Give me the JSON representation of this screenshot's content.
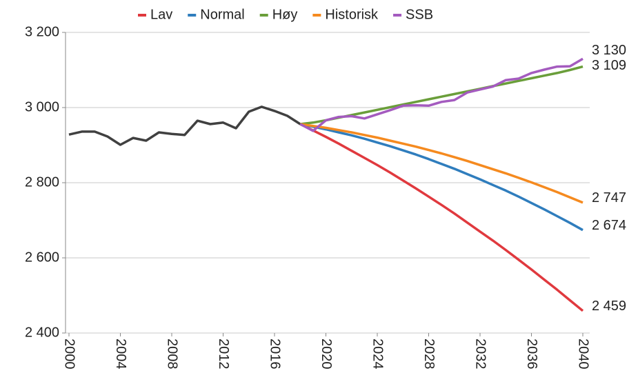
{
  "chart_data": {
    "type": "line",
    "x": [
      2000,
      2001,
      2002,
      2003,
      2004,
      2005,
      2006,
      2007,
      2008,
      2009,
      2010,
      2011,
      2012,
      2013,
      2014,
      2015,
      2016,
      2017,
      2018,
      2019,
      2020,
      2021,
      2022,
      2023,
      2024,
      2025,
      2026,
      2027,
      2028,
      2029,
      2030,
      2031,
      2032,
      2033,
      2034,
      2035,
      2036,
      2037,
      2038,
      2039,
      2040
    ],
    "xlim": [
      2000,
      2040
    ],
    "xticks": [
      2000,
      2004,
      2008,
      2012,
      2016,
      2020,
      2024,
      2028,
      2032,
      2036,
      2040
    ],
    "ylim": [
      2400,
      3200
    ],
    "yticks": [
      {
        "value": 2400,
        "label": "2 400"
      },
      {
        "value": 2600,
        "label": "2 600"
      },
      {
        "value": 2800,
        "label": "2 800"
      },
      {
        "value": 3000,
        "label": "3 000"
      },
      {
        "value": 3200,
        "label": "3 200"
      }
    ],
    "grid": true,
    "legend": "top",
    "series": [
      {
        "color": "#404040",
        "values": [
          2928,
          2936,
          2936,
          2923,
          2901,
          2919,
          2912,
          2934,
          2930,
          2927,
          2965,
          2956,
          2960,
          2945,
          2989,
          3002,
          2991,
          2978,
          2956,
          null,
          null,
          null,
          null,
          null,
          null,
          null,
          null,
          null,
          null,
          null,
          null,
          null,
          null,
          null,
          null,
          null,
          null,
          null,
          null,
          null,
          null
        ]
      },
      {
        "name": "Lav",
        "color": "#e0393e",
        "values": [
          null,
          null,
          null,
          null,
          null,
          null,
          null,
          null,
          null,
          null,
          null,
          null,
          null,
          null,
          null,
          null,
          null,
          null,
          2956,
          2939,
          2922,
          2904,
          2885,
          2866,
          2847,
          2827,
          2806,
          2785,
          2763,
          2741,
          2718,
          2694,
          2670,
          2646,
          2621,
          2595,
          2569,
          2542,
          2515,
          2487,
          2459
        ],
        "value_labels": [
          null,
          null,
          null,
          null,
          null,
          null,
          null,
          null,
          null,
          null,
          null,
          null,
          null,
          null,
          null,
          null,
          null,
          null,
          null,
          null,
          null,
          null,
          null,
          null,
          null,
          null,
          null,
          null,
          null,
          null,
          null,
          null,
          null,
          null,
          null,
          null,
          null,
          null,
          null,
          null,
          "2 459"
        ]
      },
      {
        "name": "Normal",
        "color": "#2f7dbd",
        "values": [
          null,
          null,
          null,
          null,
          null,
          null,
          null,
          null,
          null,
          null,
          null,
          null,
          null,
          null,
          null,
          null,
          null,
          null,
          2956,
          2949,
          2942,
          2934,
          2926,
          2917,
          2907,
          2897,
          2886,
          2875,
          2863,
          2850,
          2837,
          2823,
          2809,
          2794,
          2779,
          2763,
          2746,
          2729,
          2711,
          2693,
          2674
        ],
        "value_labels": [
          null,
          null,
          null,
          null,
          null,
          null,
          null,
          null,
          null,
          null,
          null,
          null,
          null,
          null,
          null,
          null,
          null,
          null,
          null,
          null,
          null,
          null,
          null,
          null,
          null,
          null,
          null,
          null,
          null,
          null,
          null,
          null,
          null,
          null,
          null,
          null,
          null,
          null,
          null,
          null,
          "2 674"
        ]
      },
      {
        "name": "Høy",
        "color": "#6a9e3a",
        "values": [
          null,
          null,
          null,
          null,
          null,
          null,
          null,
          null,
          null,
          null,
          null,
          null,
          null,
          null,
          null,
          null,
          null,
          null,
          2956,
          2960,
          2966,
          2973,
          2980,
          2987,
          2994,
          3001,
          3008,
          3015,
          3022,
          3029,
          3036,
          3043,
          3050,
          3057,
          3064,
          3071,
          3078,
          3085,
          3092,
          3100,
          3109
        ],
        "value_labels": [
          null,
          null,
          null,
          null,
          null,
          null,
          null,
          null,
          null,
          null,
          null,
          null,
          null,
          null,
          null,
          null,
          null,
          null,
          null,
          null,
          null,
          null,
          null,
          null,
          null,
          null,
          null,
          null,
          null,
          null,
          null,
          null,
          null,
          null,
          null,
          null,
          null,
          null,
          null,
          null,
          "3 109"
        ]
      },
      {
        "name": "Historisk",
        "color": "#f58a1f",
        "values": [
          null,
          null,
          null,
          null,
          null,
          null,
          null,
          null,
          null,
          null,
          null,
          null,
          null,
          null,
          null,
          null,
          null,
          null,
          2956,
          2951,
          2946,
          2940,
          2934,
          2927,
          2920,
          2912,
          2904,
          2896,
          2887,
          2878,
          2868,
          2858,
          2847,
          2836,
          2825,
          2813,
          2801,
          2788,
          2775,
          2761,
          2747
        ],
        "value_labels": [
          null,
          null,
          null,
          null,
          null,
          null,
          null,
          null,
          null,
          null,
          null,
          null,
          null,
          null,
          null,
          null,
          null,
          null,
          null,
          null,
          null,
          null,
          null,
          null,
          null,
          null,
          null,
          null,
          null,
          null,
          null,
          null,
          null,
          null,
          null,
          null,
          null,
          null,
          null,
          null,
          "2 747"
        ]
      },
      {
        "name": "SSB",
        "color": "#a45bbf",
        "values": [
          null,
          null,
          null,
          null,
          null,
          null,
          null,
          null,
          null,
          null,
          null,
          null,
          null,
          null,
          null,
          null,
          null,
          null,
          2956,
          2938,
          2966,
          2975,
          2977,
          2971,
          2982,
          2993,
          3005,
          3006,
          3005,
          3015,
          3020,
          3040,
          3048,
          3056,
          3073,
          3077,
          3092,
          3101,
          3109,
          3110,
          3130
        ],
        "value_labels": [
          null,
          null,
          null,
          null,
          null,
          null,
          null,
          null,
          null,
          null,
          null,
          null,
          null,
          null,
          null,
          null,
          null,
          null,
          null,
          null,
          null,
          null,
          null,
          null,
          null,
          null,
          null,
          null,
          null,
          null,
          null,
          null,
          null,
          null,
          null,
          null,
          null,
          null,
          null,
          null,
          "3 130"
        ]
      }
    ]
  }
}
